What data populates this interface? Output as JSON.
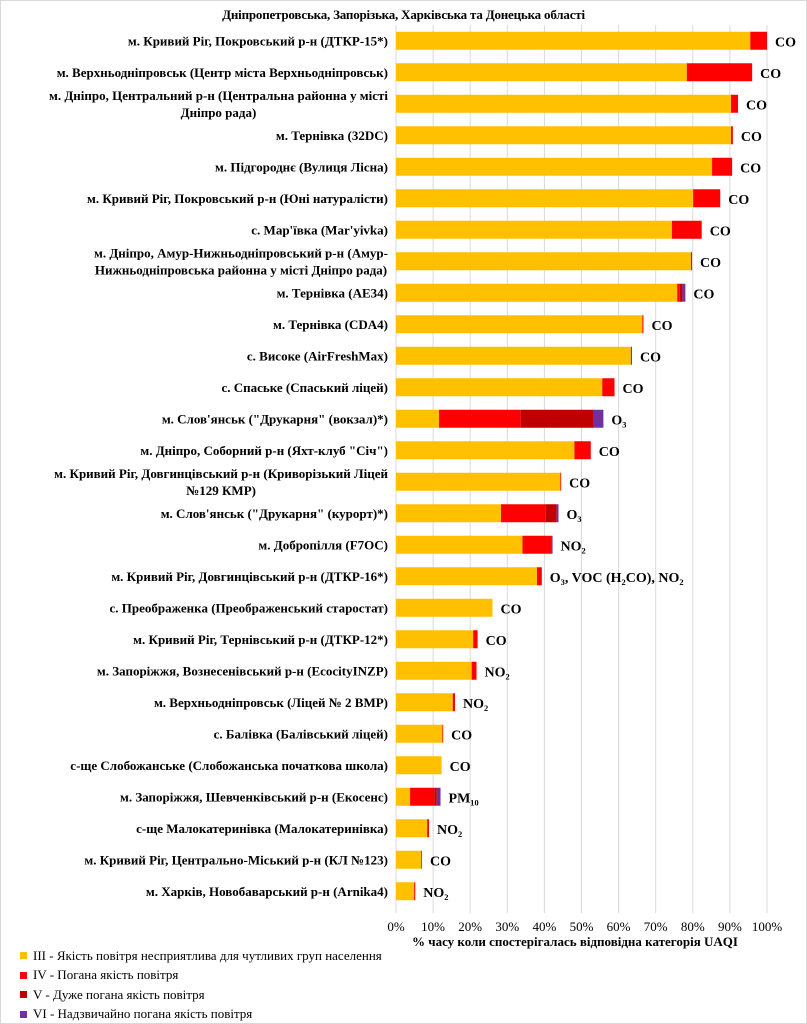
{
  "chart_data": {
    "type": "bar",
    "orientation": "horizontal",
    "stacked": true,
    "title": "Дніпропетровська, Запорізька, Харківська та Донецька області",
    "xlabel": "% часу коли спостерігалась відповідна категорія UAQI",
    "ylabel": "",
    "xlim": [
      0,
      100
    ],
    "x_ticks": [
      "0%",
      "10%",
      "20%",
      "30%",
      "40%",
      "50%",
      "60%",
      "70%",
      "80%",
      "90%",
      "100%"
    ],
    "grid": true,
    "legend_position": "bottom-left",
    "categories": [
      "м. Кривий Ріг, Покровський р-н (ДТКР-15*)",
      "м. Верхньодніпровськ (Центр міста Верхньодніпровськ)",
      "м. Дніпро, Центральний р-н (Центральна районна у місті Дніпро рада)",
      "м. Тернівка (32DC)",
      "м. Підгороднє (Вулиця Лісна)",
      "м. Кривий Ріг, Покровський р-н (Юні натуралісти)",
      "с. Мар'ївка (Mar'yivka)",
      "м. Дніпро, Амур-Нижньодніпровський р-н (Амур-Нижньодніпровська районна у місті Дніпро рада)",
      "м. Тернівка (AE34)",
      "м. Тернівка (CDA4)",
      "с. Високе (AirFreshMax)",
      "с. Спаське (Спаський ліцей)",
      "м. Слов'янськ (\"Друкарня\" (вокзал)*)",
      "м. Дніпро, Соборний р-н (Яхт-клуб \"Січ\")",
      "м. Кривий Ріг, Довгинцівський р-н (Криворізький Ліцей №129 КМР)",
      "м. Слов'янськ (\"Друкарня\" (курорт)*)",
      "м. Добропілля (F7OC)",
      "м. Кривий Ріг, Довгинцівський р-н (ДТКР-16*)",
      "с. Преображенка (Преображенський старостат)",
      "м. Кривий Ріг, Тернівський р-н (ДТКР-12*)",
      "м. Запоріжжя, Вознесенівський р-н (EcocityINZP)",
      "м. Верхньодніпровськ (Ліцей № 2 ВМР)",
      "с. Балівка (Балівський ліцей)",
      "с-ще Слобожанське (Слобожанська початкова школа)",
      "м. Запоріжжя, Шевченківський р-н (Екосенс)",
      "с-ще Малокатеринівка (Малокатеринівка)",
      "м. Кривий Ріг, Центрально-Міський р-н (КЛ №123)",
      "м. Харків, Новобаварський р-н (Arnika4)"
    ],
    "category_lines": [
      [
        "м. Кривий Ріг, Покровський р-н (ДТКР-15*)"
      ],
      [
        "м. Верхньодніпровськ (Центр міста Верхньодніпровськ)"
      ],
      [
        "м. Дніпро, Центральний р-н (Центральна районна у місті",
        "Дніпро рада)"
      ],
      [
        "м. Тернівка (32DC)"
      ],
      [
        "м. Підгороднє (Вулиця Лісна)"
      ],
      [
        "м. Кривий Ріг, Покровський р-н (Юні натуралісти)"
      ],
      [
        "с. Мар'ївка (Mar'yivka)"
      ],
      [
        "м. Дніпро, Амур-Нижньодніпровський р-н (Амур-",
        "Нижньодніпровська районна у місті Дніпро рада)"
      ],
      [
        "м. Тернівка (AE34)"
      ],
      [
        "м. Тернівка (CDA4)"
      ],
      [
        "с. Високе (AirFreshMax)"
      ],
      [
        "с. Спаське (Спаський ліцей)"
      ],
      [
        "м. Слов'янськ (\"Друкарня\" (вокзал)*)"
      ],
      [
        "м. Дніпро, Соборний р-н (Яхт-клуб \"Січ\")"
      ],
      [
        "м. Кривий Ріг, Довгинцівський р-н (Криворізький Ліцей",
        "№129 КМР)"
      ],
      [
        "м. Слов'янськ (\"Друкарня\" (курорт)*)"
      ],
      [
        "м. Добропілля (F7OC)"
      ],
      [
        "м. Кривий Ріг, Довгинцівський р-н (ДТКР-16*)"
      ],
      [
        "с. Преображенка (Преображенський старостат)"
      ],
      [
        "м. Кривий Ріг, Тернівський р-н (ДТКР-12*)"
      ],
      [
        "м. Запоріжжя, Вознесенівський р-н (EcocityINZP)"
      ],
      [
        "м. Верхньодніпровськ (Ліцей № 2 ВМР)"
      ],
      [
        "с. Балівка (Балівський ліцей)"
      ],
      [
        "с-ще Слобожанське (Слобожанська початкова школа)"
      ],
      [
        "м. Запоріжжя, Шевченківський р-н (Екосенс)"
      ],
      [
        "с-ще Малокатеринівка (Малокатеринівка)"
      ],
      [
        "м. Кривий Ріг, Центрально-Міський р-н (КЛ №123)"
      ],
      [
        "м. Харків, Новобаварський р-н (Arnika4)"
      ]
    ],
    "series": [
      {
        "name": "III - Якість повітря несприятлива для чутливих груп населення",
        "color": "#FFC000",
        "values": [
          95.5,
          78.4,
          90.3,
          90.3,
          85.2,
          80.1,
          74.4,
          79.5,
          75.8,
          66.4,
          63.3,
          55.6,
          11.6,
          48.1,
          44.3,
          28.3,
          34.1,
          38.0,
          26.0,
          20.8,
          20.4,
          15.3,
          12.5,
          12.3,
          3.8,
          8.4,
          6.8,
          4.9
        ]
      },
      {
        "name": "IV - Погана якість повітря",
        "color": "#FF0000",
        "values": [
          4.5,
          17.6,
          1.9,
          0.5,
          5.4,
          7.3,
          8.0,
          0.3,
          0.7,
          0.3,
          0.0,
          3.3,
          22.0,
          4.4,
          0.2,
          12.1,
          7.8,
          1.3,
          0.0,
          1.2,
          1.3,
          0.6,
          0.2,
          0.0,
          6.5,
          0.5,
          0.2,
          0.3
        ]
      },
      {
        "name": "V - Дуже погана якість повітря",
        "color": "#C00000",
        "values": [
          0,
          0,
          0,
          0,
          0,
          0,
          0,
          0,
          0.7,
          0,
          0,
          0,
          19.5,
          0,
          0,
          2.9,
          0,
          0,
          0,
          0,
          0,
          0,
          0,
          0,
          0.7,
          0,
          0,
          0
        ]
      },
      {
        "name": "VI - Надзвичайно погана якість повітря",
        "color": "#7030A0",
        "values": [
          0,
          0,
          0,
          0,
          0,
          0,
          0,
          0,
          0.8,
          0,
          0.3,
          0,
          2.8,
          0,
          0,
          0.5,
          0.3,
          0,
          0,
          0,
          0,
          0,
          0,
          0,
          1.0,
          0,
          0,
          0
        ]
      }
    ],
    "annotations": [
      {
        "text": "CO"
      },
      {
        "text": "CO"
      },
      {
        "text": "CO"
      },
      {
        "text": "CO"
      },
      {
        "text": "CO"
      },
      {
        "text": "CO"
      },
      {
        "text": "CO"
      },
      {
        "text": "CO"
      },
      {
        "text": "CO"
      },
      {
        "text": "CO"
      },
      {
        "text": "CO"
      },
      {
        "text": "CO"
      },
      {
        "text": "O₃"
      },
      {
        "text": "CO"
      },
      {
        "text": "CO"
      },
      {
        "text": "O₃"
      },
      {
        "text": "NO₂"
      },
      {
        "text": "O₃, VOC (H₂CO), NO₂"
      },
      {
        "text": "CO"
      },
      {
        "text": "CO"
      },
      {
        "text": "NO₂"
      },
      {
        "text": "NO₂"
      },
      {
        "text": "CO"
      },
      {
        "text": "CO"
      },
      {
        "text": "PM₁₀"
      },
      {
        "text": "NO₂"
      },
      {
        "text": "CO"
      },
      {
        "text": "NO₂"
      }
    ]
  },
  "legend": {
    "items": [
      {
        "label": "III - Якість повітря несприятлива для чутливих груп населення",
        "color": "#FFC000"
      },
      {
        "label": "IV - Погана якість повітря",
        "color": "#FF0000"
      },
      {
        "label": "V - Дуже погана якість повітря",
        "color": "#C00000"
      },
      {
        "label": "VI - Надзвичайно погана якість повітря",
        "color": "#7030A0"
      }
    ]
  }
}
